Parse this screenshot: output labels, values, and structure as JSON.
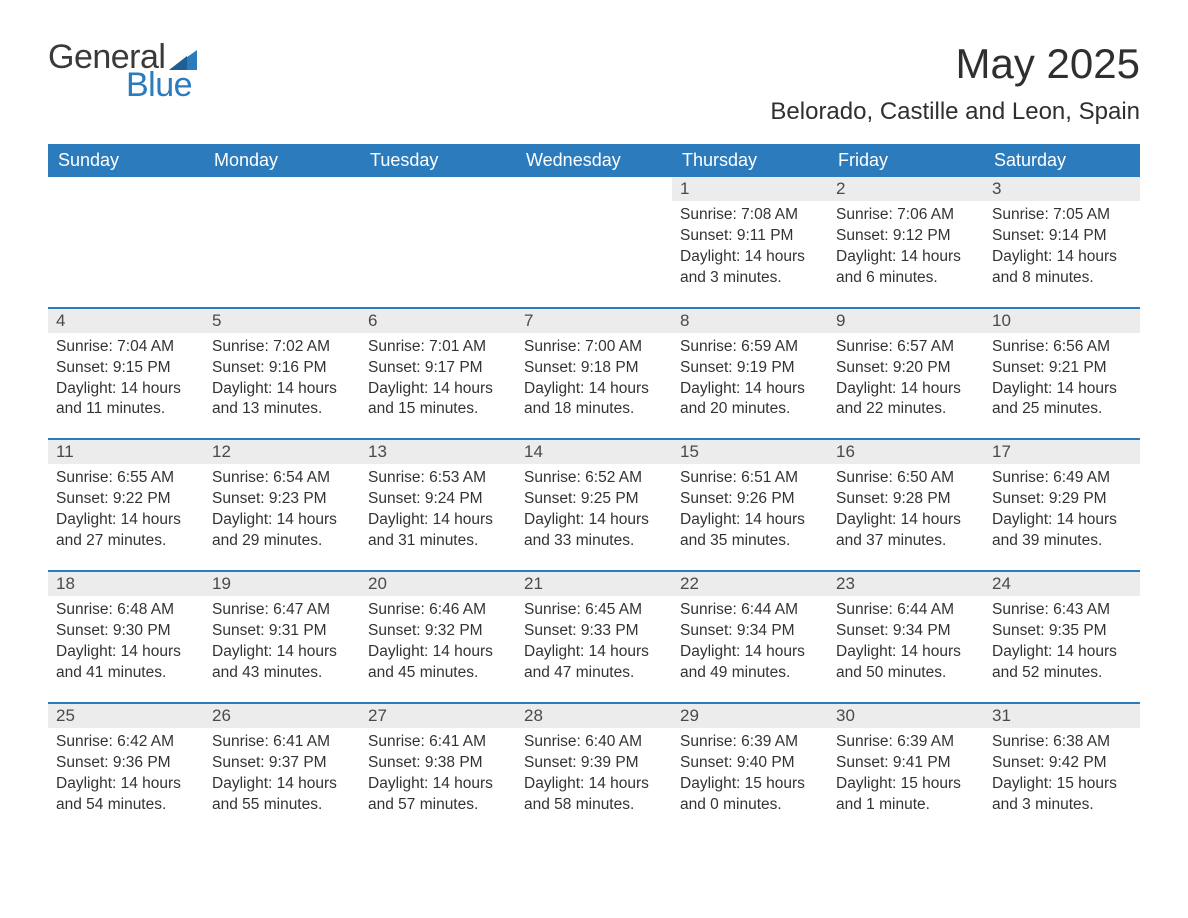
{
  "brand": {
    "line1": "General",
    "line2": "Blue",
    "triangle_color": "#2b7bbd"
  },
  "header": {
    "month_title": "May 2025",
    "location": "Belorado, Castille and Leon, Spain"
  },
  "colors": {
    "header_bg": "#2b7bbd",
    "header_text": "#ffffff",
    "daynum_bg": "#ececec",
    "cell_border": "#2b7bbd",
    "body_text": "#333333",
    "background": "#ffffff"
  },
  "day_names": [
    "Sunday",
    "Monday",
    "Tuesday",
    "Wednesday",
    "Thursday",
    "Friday",
    "Saturday"
  ],
  "weeks": [
    [
      null,
      null,
      null,
      null,
      {
        "n": "1",
        "sr": "Sunrise: 7:08 AM",
        "ss": "Sunset: 9:11 PM",
        "dl": "Daylight: 14 hours and 3 minutes."
      },
      {
        "n": "2",
        "sr": "Sunrise: 7:06 AM",
        "ss": "Sunset: 9:12 PM",
        "dl": "Daylight: 14 hours and 6 minutes."
      },
      {
        "n": "3",
        "sr": "Sunrise: 7:05 AM",
        "ss": "Sunset: 9:14 PM",
        "dl": "Daylight: 14 hours and 8 minutes."
      }
    ],
    [
      {
        "n": "4",
        "sr": "Sunrise: 7:04 AM",
        "ss": "Sunset: 9:15 PM",
        "dl": "Daylight: 14 hours and 11 minutes."
      },
      {
        "n": "5",
        "sr": "Sunrise: 7:02 AM",
        "ss": "Sunset: 9:16 PM",
        "dl": "Daylight: 14 hours and 13 minutes."
      },
      {
        "n": "6",
        "sr": "Sunrise: 7:01 AM",
        "ss": "Sunset: 9:17 PM",
        "dl": "Daylight: 14 hours and 15 minutes."
      },
      {
        "n": "7",
        "sr": "Sunrise: 7:00 AM",
        "ss": "Sunset: 9:18 PM",
        "dl": "Daylight: 14 hours and 18 minutes."
      },
      {
        "n": "8",
        "sr": "Sunrise: 6:59 AM",
        "ss": "Sunset: 9:19 PM",
        "dl": "Daylight: 14 hours and 20 minutes."
      },
      {
        "n": "9",
        "sr": "Sunrise: 6:57 AM",
        "ss": "Sunset: 9:20 PM",
        "dl": "Daylight: 14 hours and 22 minutes."
      },
      {
        "n": "10",
        "sr": "Sunrise: 6:56 AM",
        "ss": "Sunset: 9:21 PM",
        "dl": "Daylight: 14 hours and 25 minutes."
      }
    ],
    [
      {
        "n": "11",
        "sr": "Sunrise: 6:55 AM",
        "ss": "Sunset: 9:22 PM",
        "dl": "Daylight: 14 hours and 27 minutes."
      },
      {
        "n": "12",
        "sr": "Sunrise: 6:54 AM",
        "ss": "Sunset: 9:23 PM",
        "dl": "Daylight: 14 hours and 29 minutes."
      },
      {
        "n": "13",
        "sr": "Sunrise: 6:53 AM",
        "ss": "Sunset: 9:24 PM",
        "dl": "Daylight: 14 hours and 31 minutes."
      },
      {
        "n": "14",
        "sr": "Sunrise: 6:52 AM",
        "ss": "Sunset: 9:25 PM",
        "dl": "Daylight: 14 hours and 33 minutes."
      },
      {
        "n": "15",
        "sr": "Sunrise: 6:51 AM",
        "ss": "Sunset: 9:26 PM",
        "dl": "Daylight: 14 hours and 35 minutes."
      },
      {
        "n": "16",
        "sr": "Sunrise: 6:50 AM",
        "ss": "Sunset: 9:28 PM",
        "dl": "Daylight: 14 hours and 37 minutes."
      },
      {
        "n": "17",
        "sr": "Sunrise: 6:49 AM",
        "ss": "Sunset: 9:29 PM",
        "dl": "Daylight: 14 hours and 39 minutes."
      }
    ],
    [
      {
        "n": "18",
        "sr": "Sunrise: 6:48 AM",
        "ss": "Sunset: 9:30 PM",
        "dl": "Daylight: 14 hours and 41 minutes."
      },
      {
        "n": "19",
        "sr": "Sunrise: 6:47 AM",
        "ss": "Sunset: 9:31 PM",
        "dl": "Daylight: 14 hours and 43 minutes."
      },
      {
        "n": "20",
        "sr": "Sunrise: 6:46 AM",
        "ss": "Sunset: 9:32 PM",
        "dl": "Daylight: 14 hours and 45 minutes."
      },
      {
        "n": "21",
        "sr": "Sunrise: 6:45 AM",
        "ss": "Sunset: 9:33 PM",
        "dl": "Daylight: 14 hours and 47 minutes."
      },
      {
        "n": "22",
        "sr": "Sunrise: 6:44 AM",
        "ss": "Sunset: 9:34 PM",
        "dl": "Daylight: 14 hours and 49 minutes."
      },
      {
        "n": "23",
        "sr": "Sunrise: 6:44 AM",
        "ss": "Sunset: 9:34 PM",
        "dl": "Daylight: 14 hours and 50 minutes."
      },
      {
        "n": "24",
        "sr": "Sunrise: 6:43 AM",
        "ss": "Sunset: 9:35 PM",
        "dl": "Daylight: 14 hours and 52 minutes."
      }
    ],
    [
      {
        "n": "25",
        "sr": "Sunrise: 6:42 AM",
        "ss": "Sunset: 9:36 PM",
        "dl": "Daylight: 14 hours and 54 minutes."
      },
      {
        "n": "26",
        "sr": "Sunrise: 6:41 AM",
        "ss": "Sunset: 9:37 PM",
        "dl": "Daylight: 14 hours and 55 minutes."
      },
      {
        "n": "27",
        "sr": "Sunrise: 6:41 AM",
        "ss": "Sunset: 9:38 PM",
        "dl": "Daylight: 14 hours and 57 minutes."
      },
      {
        "n": "28",
        "sr": "Sunrise: 6:40 AM",
        "ss": "Sunset: 9:39 PM",
        "dl": "Daylight: 14 hours and 58 minutes."
      },
      {
        "n": "29",
        "sr": "Sunrise: 6:39 AM",
        "ss": "Sunset: 9:40 PM",
        "dl": "Daylight: 15 hours and 0 minutes."
      },
      {
        "n": "30",
        "sr": "Sunrise: 6:39 AM",
        "ss": "Sunset: 9:41 PM",
        "dl": "Daylight: 15 hours and 1 minute."
      },
      {
        "n": "31",
        "sr": "Sunrise: 6:38 AM",
        "ss": "Sunset: 9:42 PM",
        "dl": "Daylight: 15 hours and 3 minutes."
      }
    ]
  ]
}
